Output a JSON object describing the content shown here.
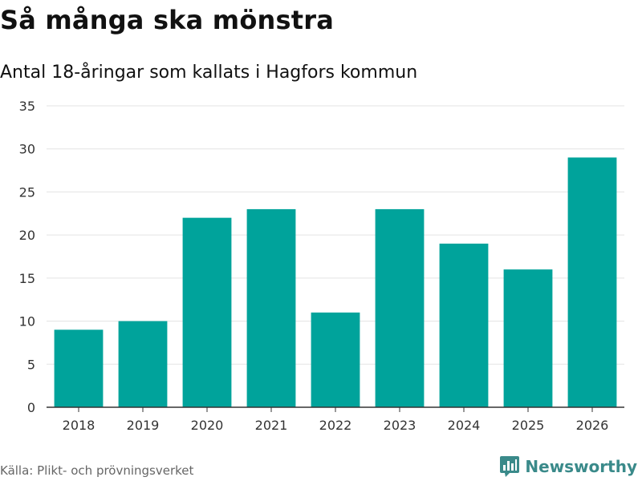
{
  "chart_data": {
    "type": "bar",
    "title": "Så många ska mönstra",
    "subtitle": "Antal 18-åringar som kallats i Hagfors kommun",
    "xlabel": "",
    "ylabel": "",
    "categories": [
      "2018",
      "2019",
      "2020",
      "2021",
      "2022",
      "2023",
      "2024",
      "2025",
      "2026"
    ],
    "values": [
      9,
      10,
      22,
      23,
      11,
      23,
      19,
      16,
      29
    ],
    "ylim": [
      0,
      35
    ],
    "yticks": [
      0,
      5,
      10,
      15,
      20,
      25,
      30,
      35
    ],
    "grid": true,
    "bar_color": "#00a39b"
  },
  "footer": {
    "source": "Källa: Plikt- och prövningsverket",
    "brand": "Newsworthy",
    "brand_icon": "newsworthy-logo-icon",
    "brand_color": "#3a8a8a"
  }
}
